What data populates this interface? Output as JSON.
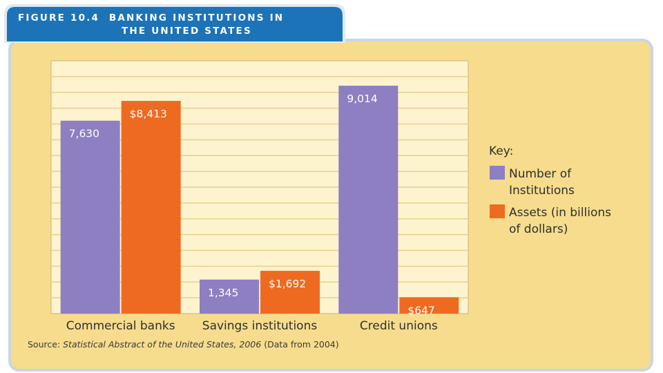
{
  "chart_data": {
    "type": "bar",
    "title_line1": "FIGURE 10.4  BANKING INSTITUTIONS IN",
    "title_line2": "THE UNITED STATES",
    "categories": [
      "Commercial banks",
      "Savings institutions",
      "Credit unions"
    ],
    "series": [
      {
        "name": "Number of Institutions",
        "name_lines": [
          "Number of",
          "Institutions"
        ],
        "values": [
          7630,
          1345,
          9014
        ],
        "labels": [
          "7,630",
          "1,345",
          "9,014"
        ],
        "color": "#8d7fc2"
      },
      {
        "name": "Assets (in billions of dollars)",
        "name_lines": [
          "Assets (in billions",
          "of dollars)"
        ],
        "values": [
          8413,
          1692,
          647
        ],
        "labels": [
          "$8,413",
          "$1,692",
          "$647"
        ],
        "color": "#ee6a21"
      }
    ],
    "key_title": "Key:",
    "ylim": [
      0,
      10000
    ],
    "grid": true,
    "legend_position": "right",
    "source": {
      "prefix": "Source: ",
      "italic": "Statistical Abstract of the United States, 2006",
      "suffix": " (Data from 2004)"
    }
  }
}
